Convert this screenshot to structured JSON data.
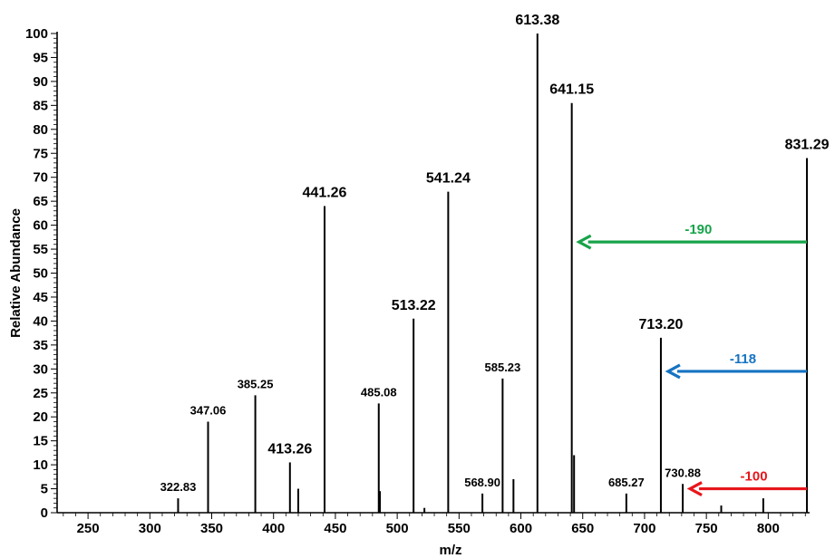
{
  "chart_data": {
    "type": "bar",
    "xlabel": "m/z",
    "ylabel": "Relative Abundance",
    "xlim": [
      225,
      832
    ],
    "ylim": [
      0,
      100
    ],
    "x_ticks": [
      250,
      300,
      350,
      400,
      450,
      500,
      550,
      600,
      650,
      700,
      750,
      800
    ],
    "y_ticks": [
      0,
      5,
      10,
      15,
      20,
      25,
      30,
      35,
      40,
      45,
      50,
      55,
      60,
      65,
      70,
      75,
      80,
      85,
      90,
      95,
      100
    ],
    "peaks": [
      {
        "x": 322.83,
        "y": 3,
        "label": "322.83",
        "size": "small"
      },
      {
        "x": 347.06,
        "y": 19,
        "label": "347.06",
        "size": "small"
      },
      {
        "x": 385.25,
        "y": 24.5,
        "label": "385.25",
        "size": "small"
      },
      {
        "x": 413.26,
        "y": 10.5,
        "label": "413.26",
        "size": "large"
      },
      {
        "x": 420,
        "y": 5
      },
      {
        "x": 441.26,
        "y": 64,
        "label": "441.26",
        "size": "large"
      },
      {
        "x": 485.08,
        "y": 22.8,
        "label": "485.08",
        "size": "small"
      },
      {
        "x": 486,
        "y": 4.5
      },
      {
        "x": 513.22,
        "y": 40.5,
        "label": "513.22",
        "size": "large"
      },
      {
        "x": 522,
        "y": 1
      },
      {
        "x": 541.24,
        "y": 67,
        "label": "541.24",
        "size": "large"
      },
      {
        "x": 568.9,
        "y": 4,
        "label": "568.90",
        "size": "small"
      },
      {
        "x": 585.23,
        "y": 28,
        "label": "585.23",
        "size": "small"
      },
      {
        "x": 594,
        "y": 7
      },
      {
        "x": 613.38,
        "y": 100,
        "label": "613.38",
        "size": "large"
      },
      {
        "x": 641.15,
        "y": 85.5,
        "label": "641.15",
        "size": "large"
      },
      {
        "x": 643,
        "y": 12
      },
      {
        "x": 685.27,
        "y": 4,
        "label": "685.27",
        "size": "small"
      },
      {
        "x": 713.2,
        "y": 36.5,
        "label": "713.20",
        "size": "large"
      },
      {
        "x": 730.88,
        "y": 6,
        "label": "730.88",
        "size": "small"
      },
      {
        "x": 762,
        "y": 1.5
      },
      {
        "x": 796,
        "y": 3
      },
      {
        "x": 831.29,
        "y": 74,
        "label": "831.29",
        "size": "large"
      }
    ],
    "annotations": [
      {
        "label": "-190",
        "from_x": 831.29,
        "to_x": 641.15,
        "y": 56.5,
        "color": "#17a34a"
      },
      {
        "label": "-118",
        "from_x": 831.29,
        "to_x": 713.2,
        "y": 29.5,
        "color": "#1673c2"
      },
      {
        "label": "-100",
        "from_x": 831.29,
        "to_x": 730.88,
        "y": 5,
        "color": "#e8161b"
      }
    ]
  }
}
